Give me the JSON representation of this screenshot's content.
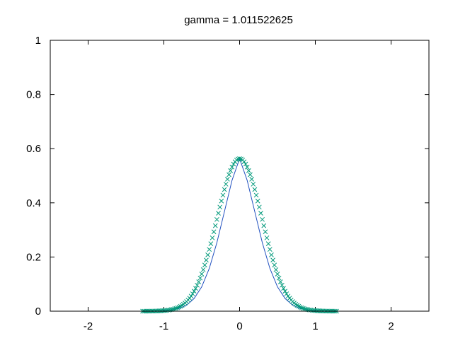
{
  "chart_data": {
    "type": "line",
    "title": "gamma = 1.011522625",
    "xlabel": "",
    "ylabel": "",
    "xlim": [
      -2.5,
      2.5
    ],
    "ylim": [
      0,
      1
    ],
    "xticks": [
      -2,
      -1,
      0,
      1,
      2
    ],
    "yticks": [
      0,
      0.2,
      0.4,
      0.6,
      0.8,
      1
    ],
    "xtick_labels": [
      "-2",
      "-1",
      "0",
      "1",
      "2"
    ],
    "ytick_labels": [
      "0",
      "0.2",
      "0.4",
      "0.6",
      "0.8",
      "1"
    ],
    "grid": false,
    "legend": "none",
    "series": [
      {
        "style": "line",
        "color": "#1f4fbf",
        "x": [
          -1.28,
          -1.2,
          -1.1,
          -1.0,
          -0.9,
          -0.8,
          -0.7,
          -0.6,
          -0.5,
          -0.4,
          -0.3,
          -0.2,
          -0.1,
          0.0,
          0.1,
          0.2,
          0.3,
          0.4,
          0.5,
          0.6,
          0.7,
          0.8,
          0.9,
          1.0,
          1.1,
          1.2,
          1.28
        ],
        "y": [
          0.0001,
          0.0002,
          0.0005,
          0.0014,
          0.0038,
          0.0096,
          0.022,
          0.047,
          0.09,
          0.158,
          0.253,
          0.368,
          0.483,
          0.563,
          0.483,
          0.368,
          0.253,
          0.158,
          0.09,
          0.047,
          0.022,
          0.0096,
          0.0038,
          0.0014,
          0.0005,
          0.0002,
          0.0001
        ]
      },
      {
        "style": "points",
        "marker": "x",
        "color": "#00997a",
        "x_start": -1.28,
        "x_end": 1.28,
        "count": 129,
        "y_peak": 0.563,
        "peak_x": 0.0,
        "width_sigma": 0.2975
      }
    ]
  }
}
